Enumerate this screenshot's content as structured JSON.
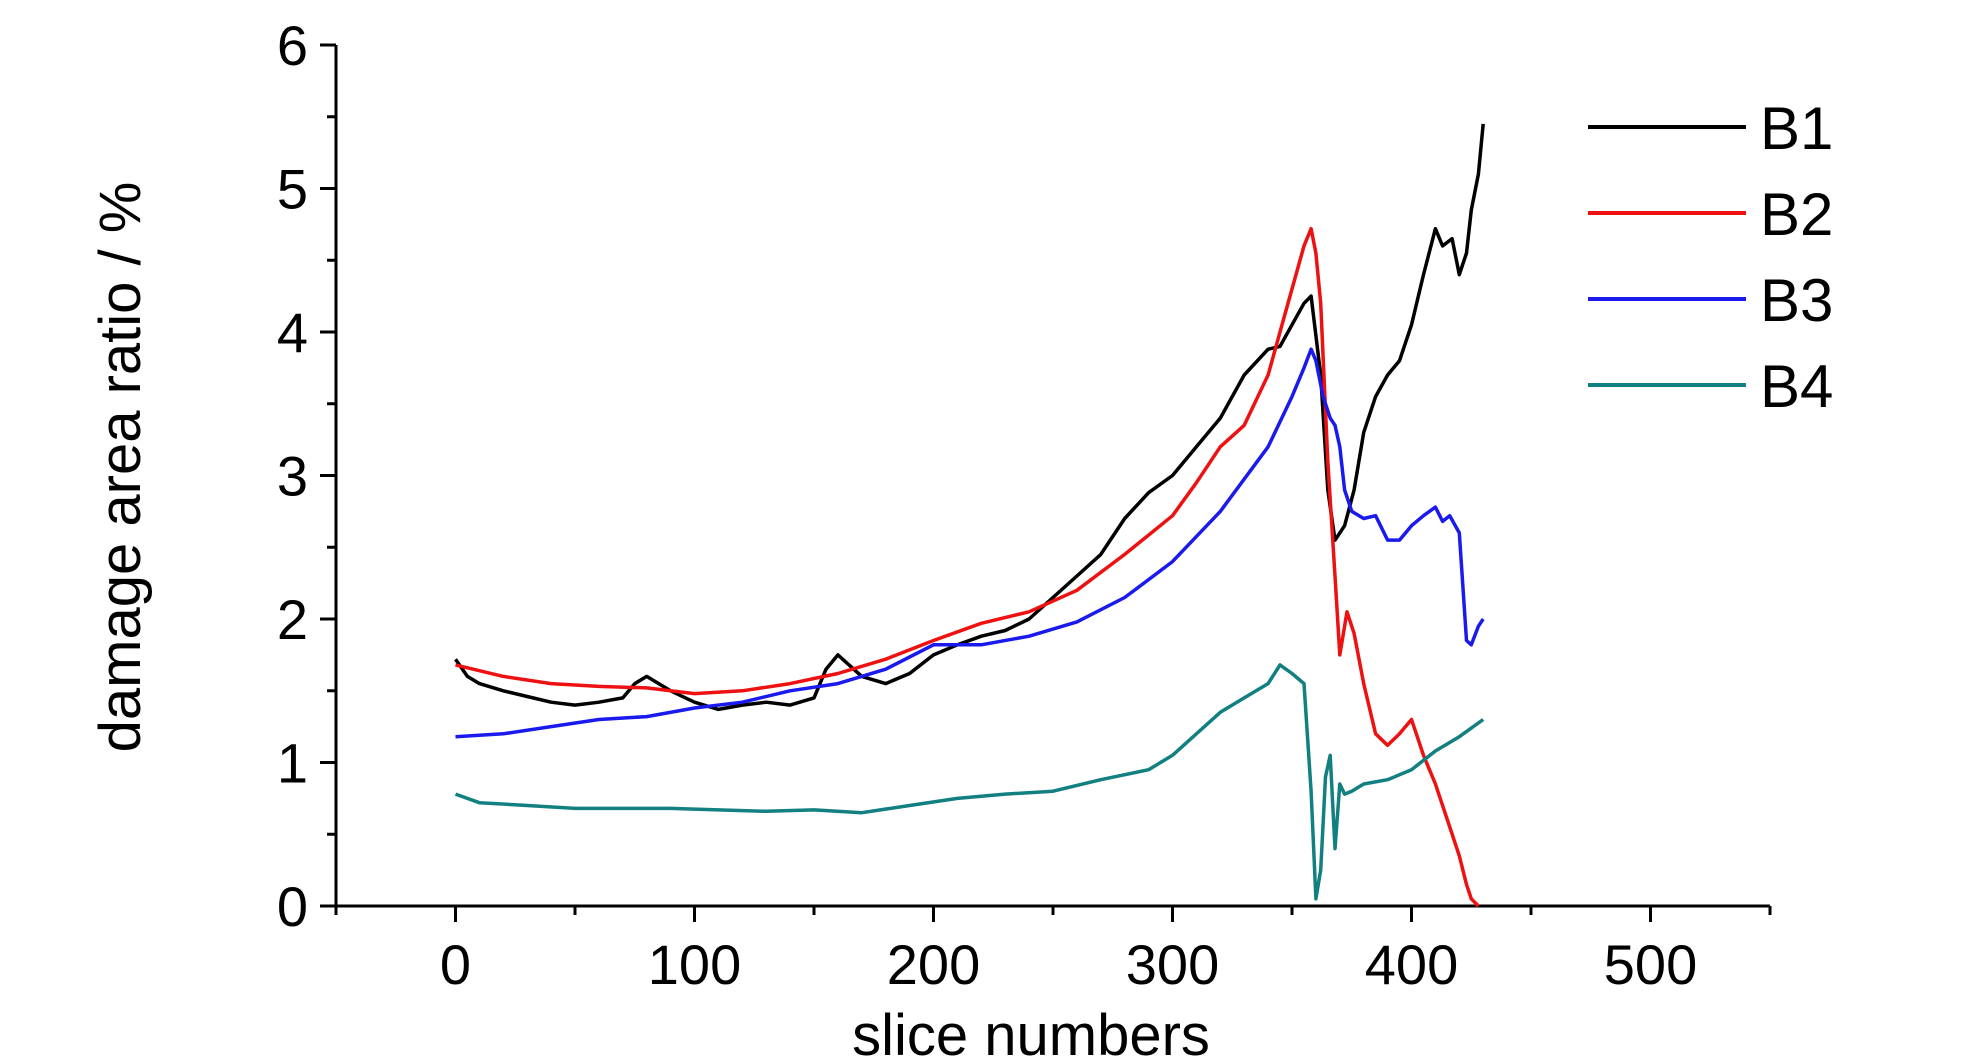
{
  "chart_data": {
    "type": "line",
    "xlabel": "slice numbers",
    "ylabel": "damage area ratio / %",
    "xlim": [
      -50,
      550
    ],
    "ylim": [
      0,
      6
    ],
    "xticks": [
      "0",
      "100",
      "200",
      "300",
      "400",
      "500"
    ],
    "yticks": [
      "0",
      "1",
      "2",
      "3",
      "4",
      "5",
      "6"
    ],
    "legend_position": "top-right",
    "grid": false,
    "series": [
      {
        "name": "B1",
        "color": "#000000",
        "x": [
          0,
          5,
          10,
          20,
          30,
          40,
          50,
          60,
          70,
          75,
          80,
          85,
          90,
          100,
          110,
          120,
          130,
          140,
          150,
          155,
          160,
          170,
          180,
          190,
          200,
          210,
          220,
          230,
          240,
          250,
          260,
          270,
          280,
          290,
          300,
          310,
          320,
          330,
          340,
          345,
          350,
          355,
          358,
          362,
          365,
          368,
          372,
          376,
          380,
          385,
          390,
          395,
          400,
          405,
          410,
          413,
          417,
          420,
          423,
          425,
          428,
          430
        ],
        "y": [
          1.72,
          1.6,
          1.55,
          1.5,
          1.46,
          1.42,
          1.4,
          1.42,
          1.45,
          1.55,
          1.6,
          1.55,
          1.5,
          1.42,
          1.37,
          1.4,
          1.42,
          1.4,
          1.45,
          1.65,
          1.75,
          1.6,
          1.55,
          1.62,
          1.75,
          1.82,
          1.88,
          1.92,
          2.0,
          2.15,
          2.3,
          2.45,
          2.7,
          2.88,
          3.0,
          3.2,
          3.4,
          3.7,
          3.88,
          3.9,
          4.05,
          4.2,
          4.25,
          3.7,
          2.9,
          2.55,
          2.65,
          2.9,
          3.3,
          3.55,
          3.7,
          3.8,
          4.05,
          4.4,
          4.72,
          4.6,
          4.65,
          4.4,
          4.55,
          4.85,
          5.1,
          5.45
        ]
      },
      {
        "name": "B2",
        "color": "#ee1111",
        "x": [
          0,
          20,
          40,
          60,
          80,
          100,
          120,
          140,
          160,
          180,
          200,
          220,
          240,
          260,
          280,
          300,
          310,
          320,
          330,
          340,
          345,
          350,
          355,
          358,
          360,
          362,
          365,
          368,
          370,
          373,
          376,
          380,
          385,
          390,
          395,
          400,
          405,
          410,
          415,
          420,
          423,
          425,
          428
        ],
        "y": [
          1.68,
          1.6,
          1.55,
          1.53,
          1.52,
          1.48,
          1.5,
          1.55,
          1.62,
          1.72,
          1.85,
          1.97,
          2.05,
          2.2,
          2.45,
          2.72,
          2.95,
          3.2,
          3.35,
          3.7,
          4.0,
          4.3,
          4.6,
          4.72,
          4.55,
          4.2,
          3.1,
          2.3,
          1.75,
          2.05,
          1.9,
          1.55,
          1.2,
          1.12,
          1.2,
          1.3,
          1.05,
          0.85,
          0.6,
          0.35,
          0.15,
          0.05,
          0.0
        ]
      },
      {
        "name": "B3",
        "color": "#1a1aee",
        "x": [
          0,
          20,
          40,
          60,
          80,
          100,
          120,
          140,
          160,
          180,
          200,
          220,
          240,
          260,
          280,
          300,
          320,
          340,
          350,
          355,
          358,
          360,
          363,
          366,
          368,
          370,
          372,
          375,
          380,
          385,
          390,
          395,
          400,
          405,
          410,
          413,
          416,
          420,
          423,
          425,
          428,
          430
        ],
        "y": [
          1.18,
          1.2,
          1.25,
          1.3,
          1.32,
          1.38,
          1.42,
          1.5,
          1.55,
          1.65,
          1.82,
          1.82,
          1.88,
          1.98,
          2.15,
          2.4,
          2.75,
          3.2,
          3.55,
          3.75,
          3.88,
          3.8,
          3.55,
          3.4,
          3.35,
          3.2,
          2.9,
          2.75,
          2.7,
          2.72,
          2.55,
          2.55,
          2.65,
          2.72,
          2.78,
          2.68,
          2.72,
          2.6,
          1.85,
          1.82,
          1.95,
          2.0
        ]
      },
      {
        "name": "B4",
        "color": "#128080",
        "x": [
          0,
          10,
          30,
          50,
          70,
          90,
          110,
          130,
          150,
          170,
          190,
          210,
          230,
          250,
          270,
          290,
          300,
          310,
          320,
          330,
          340,
          345,
          350,
          355,
          358,
          360,
          362,
          364,
          366,
          368,
          370,
          372,
          375,
          380,
          390,
          400,
          410,
          420,
          430
        ],
        "y": [
          0.78,
          0.72,
          0.7,
          0.68,
          0.68,
          0.68,
          0.67,
          0.66,
          0.67,
          0.65,
          0.7,
          0.75,
          0.78,
          0.8,
          0.88,
          0.95,
          1.05,
          1.2,
          1.35,
          1.45,
          1.55,
          1.68,
          1.62,
          1.55,
          0.8,
          0.05,
          0.25,
          0.9,
          1.05,
          0.4,
          0.85,
          0.78,
          0.8,
          0.85,
          0.88,
          0.95,
          1.08,
          1.18,
          1.3
        ]
      }
    ]
  }
}
